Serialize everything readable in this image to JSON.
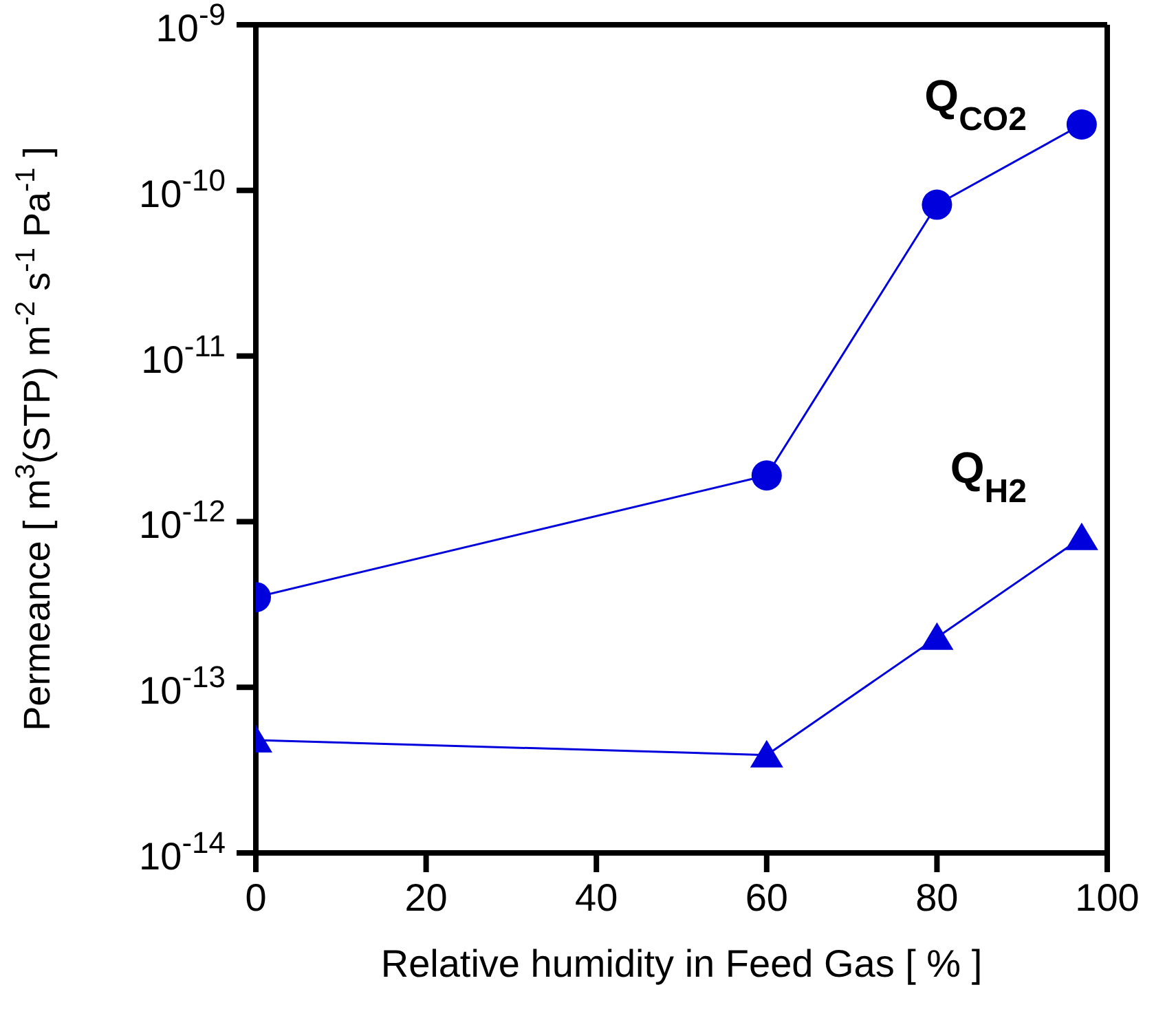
{
  "chart_data": {
    "type": "line",
    "xlabel": "Relative humidity in Feed Gas [ % ]",
    "ylabel": "Permeance [ m$^{3}$(STP) m$^{-2}$ s$^{-1}$ Pa$^{-1}$ ]",
    "x": [
      0,
      60,
      80,
      97
    ],
    "series": [
      {
        "name": "Q$_{CO2}$",
        "color": "#0000dd",
        "marker": "circle",
        "values": [
          3.5e-13,
          1.9e-12,
          8.2e-11,
          2.5e-10
        ]
      },
      {
        "name": "Q$_{H2}$",
        "color": "#0000dd",
        "marker": "triangle",
        "values": [
          4.8e-14,
          3.9e-14,
          2e-13,
          8e-13
        ]
      }
    ],
    "log": "y",
    "xlim": [
      0,
      100
    ],
    "xticks": [
      0,
      20,
      40,
      60,
      80,
      100
    ],
    "ylim": [
      1e-14,
      1e-09
    ],
    "yticks": [
      {
        "value": 1e-14,
        "label": "10$^{-14}$"
      },
      {
        "value": 1e-13,
        "label": "10$^{-13}$"
      },
      {
        "value": 1e-12,
        "label": "10$^{-12}$"
      },
      {
        "value": 1e-11,
        "label": "10$^{-11}$"
      },
      {
        "value": 1e-10,
        "label": "10$^{-10}$"
      },
      {
        "value": 1e-09,
        "label": "10$^{-9}$"
      }
    ],
    "grid": false,
    "line_style": "solid"
  }
}
